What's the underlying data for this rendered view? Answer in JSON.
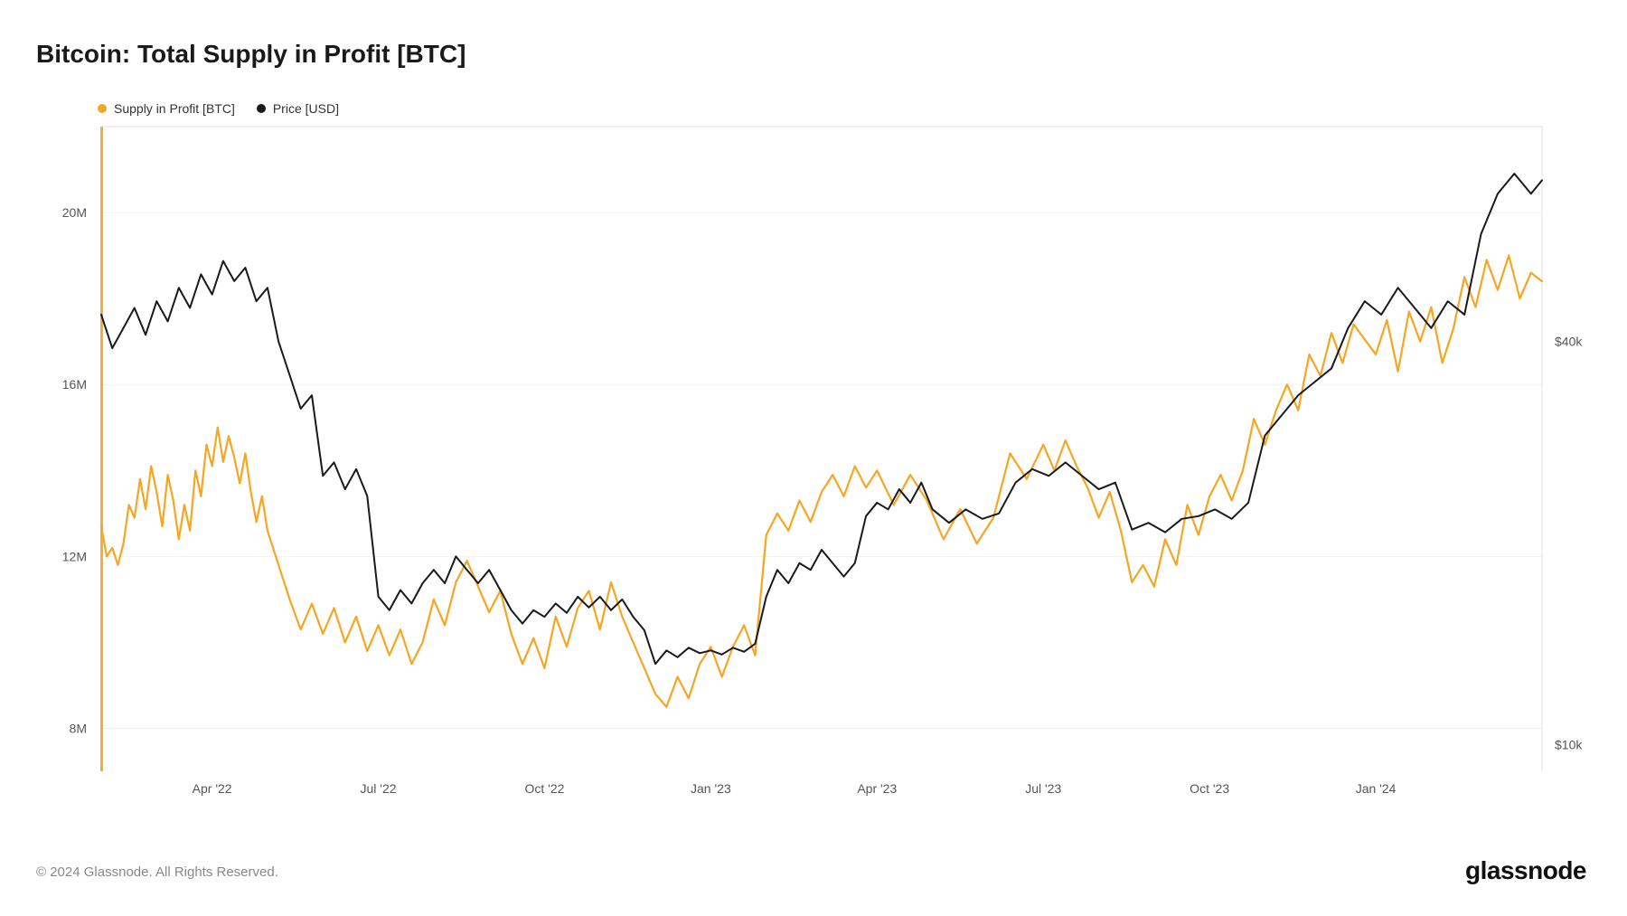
{
  "title": "Bitcoin: Total Supply in Profit [BTC]",
  "legend": {
    "series1": {
      "label": "Supply in Profit [BTC]",
      "color": "#f5a623"
    },
    "series2": {
      "label": "Price [USD]",
      "color": "#1a1a1a"
    }
  },
  "footer": "© 2024 Glassnode. All Rights Reserved.",
  "brand": "glassnode",
  "chart": {
    "type": "dual-axis-line",
    "background_color": "#ffffff",
    "grid_color": "#f2f2f2",
    "border_color": "#e0e0e0",
    "plot_border_right": "#e0e0e0",
    "left_axis": {
      "label_color": "#555",
      "ticks": [
        {
          "value": 8,
          "label": "8M"
        },
        {
          "value": 12,
          "label": "12M"
        },
        {
          "value": 16,
          "label": "16M"
        },
        {
          "value": 20,
          "label": "20M"
        }
      ],
      "min": 7,
      "max": 22
    },
    "right_axis": {
      "label_color": "#555",
      "ticks": [
        {
          "value": 10,
          "label": "$10k"
        },
        {
          "value": 40,
          "label": "$40k"
        }
      ],
      "min": 8,
      "max": 56
    },
    "x_axis": {
      "label_color": "#555",
      "min": 0,
      "max": 26,
      "ticks": [
        {
          "value": 2,
          "label": "Apr '22"
        },
        {
          "value": 5,
          "label": "Jul '22"
        },
        {
          "value": 8,
          "label": "Oct '22"
        },
        {
          "value": 11,
          "label": "Jan '23"
        },
        {
          "value": 14,
          "label": "Apr '23"
        },
        {
          "value": 17,
          "label": "Jul '23"
        },
        {
          "value": 20,
          "label": "Oct '23"
        },
        {
          "value": 23,
          "label": "Jan '24"
        }
      ]
    },
    "series_supply": {
      "color": "#f5a623",
      "line_width": 2.2,
      "data": [
        [
          0.0,
          12.7
        ],
        [
          0.1,
          12.0
        ],
        [
          0.2,
          12.2
        ],
        [
          0.3,
          11.8
        ],
        [
          0.4,
          12.3
        ],
        [
          0.5,
          13.2
        ],
        [
          0.6,
          12.9
        ],
        [
          0.7,
          13.8
        ],
        [
          0.8,
          13.1
        ],
        [
          0.9,
          14.1
        ],
        [
          1.0,
          13.5
        ],
        [
          1.1,
          12.7
        ],
        [
          1.2,
          13.9
        ],
        [
          1.3,
          13.3
        ],
        [
          1.4,
          12.4
        ],
        [
          1.5,
          13.2
        ],
        [
          1.6,
          12.6
        ],
        [
          1.7,
          14.0
        ],
        [
          1.8,
          13.4
        ],
        [
          1.9,
          14.6
        ],
        [
          2.0,
          14.1
        ],
        [
          2.1,
          15.0
        ],
        [
          2.2,
          14.2
        ],
        [
          2.3,
          14.8
        ],
        [
          2.4,
          14.3
        ],
        [
          2.5,
          13.7
        ],
        [
          2.6,
          14.4
        ],
        [
          2.7,
          13.5
        ],
        [
          2.8,
          12.8
        ],
        [
          2.9,
          13.4
        ],
        [
          3.0,
          12.6
        ],
        [
          3.2,
          11.8
        ],
        [
          3.4,
          11.0
        ],
        [
          3.6,
          10.3
        ],
        [
          3.8,
          10.9
        ],
        [
          4.0,
          10.2
        ],
        [
          4.2,
          10.8
        ],
        [
          4.4,
          10.0
        ],
        [
          4.6,
          10.6
        ],
        [
          4.8,
          9.8
        ],
        [
          5.0,
          10.4
        ],
        [
          5.2,
          9.7
        ],
        [
          5.4,
          10.3
        ],
        [
          5.6,
          9.5
        ],
        [
          5.8,
          10.0
        ],
        [
          6.0,
          11.0
        ],
        [
          6.2,
          10.4
        ],
        [
          6.4,
          11.4
        ],
        [
          6.6,
          11.9
        ],
        [
          6.8,
          11.3
        ],
        [
          7.0,
          10.7
        ],
        [
          7.2,
          11.2
        ],
        [
          7.4,
          10.2
        ],
        [
          7.6,
          9.5
        ],
        [
          7.8,
          10.1
        ],
        [
          8.0,
          9.4
        ],
        [
          8.2,
          10.6
        ],
        [
          8.4,
          9.9
        ],
        [
          8.6,
          10.8
        ],
        [
          8.8,
          11.2
        ],
        [
          9.0,
          10.3
        ],
        [
          9.2,
          11.4
        ],
        [
          9.4,
          10.6
        ],
        [
          9.6,
          10.0
        ],
        [
          9.8,
          9.4
        ],
        [
          10.0,
          8.8
        ],
        [
          10.2,
          8.5
        ],
        [
          10.4,
          9.2
        ],
        [
          10.6,
          8.7
        ],
        [
          10.8,
          9.5
        ],
        [
          11.0,
          9.9
        ],
        [
          11.2,
          9.2
        ],
        [
          11.4,
          9.9
        ],
        [
          11.6,
          10.4
        ],
        [
          11.8,
          9.7
        ],
        [
          12.0,
          12.5
        ],
        [
          12.2,
          13.0
        ],
        [
          12.4,
          12.6
        ],
        [
          12.6,
          13.3
        ],
        [
          12.8,
          12.8
        ],
        [
          13.0,
          13.5
        ],
        [
          13.2,
          13.9
        ],
        [
          13.4,
          13.4
        ],
        [
          13.6,
          14.1
        ],
        [
          13.8,
          13.6
        ],
        [
          14.0,
          14.0
        ],
        [
          14.3,
          13.2
        ],
        [
          14.6,
          13.9
        ],
        [
          14.9,
          13.3
        ],
        [
          15.2,
          12.4
        ],
        [
          15.5,
          13.1
        ],
        [
          15.8,
          12.3
        ],
        [
          16.1,
          12.9
        ],
        [
          16.4,
          14.4
        ],
        [
          16.7,
          13.8
        ],
        [
          17.0,
          14.6
        ],
        [
          17.2,
          14.0
        ],
        [
          17.4,
          14.7
        ],
        [
          17.6,
          14.1
        ],
        [
          17.8,
          13.6
        ],
        [
          18.0,
          12.9
        ],
        [
          18.2,
          13.5
        ],
        [
          18.4,
          12.6
        ],
        [
          18.6,
          11.4
        ],
        [
          18.8,
          11.8
        ],
        [
          19.0,
          11.3
        ],
        [
          19.2,
          12.4
        ],
        [
          19.4,
          11.8
        ],
        [
          19.6,
          13.2
        ],
        [
          19.8,
          12.5
        ],
        [
          20.0,
          13.4
        ],
        [
          20.2,
          13.9
        ],
        [
          20.4,
          13.3
        ],
        [
          20.6,
          14.0
        ],
        [
          20.8,
          15.2
        ],
        [
          21.0,
          14.6
        ],
        [
          21.2,
          15.4
        ],
        [
          21.4,
          16.0
        ],
        [
          21.6,
          15.4
        ],
        [
          21.8,
          16.7
        ],
        [
          22.0,
          16.2
        ],
        [
          22.2,
          17.2
        ],
        [
          22.4,
          16.5
        ],
        [
          22.6,
          17.4
        ],
        [
          23.0,
          16.7
        ],
        [
          23.2,
          17.5
        ],
        [
          23.4,
          16.3
        ],
        [
          23.6,
          17.7
        ],
        [
          23.8,
          17.0
        ],
        [
          24.0,
          17.8
        ],
        [
          24.2,
          16.5
        ],
        [
          24.4,
          17.3
        ],
        [
          24.6,
          18.5
        ],
        [
          24.8,
          17.8
        ],
        [
          25.0,
          18.9
        ],
        [
          25.2,
          18.2
        ],
        [
          25.4,
          19.0
        ],
        [
          25.6,
          18.0
        ],
        [
          25.8,
          18.6
        ],
        [
          26.0,
          18.4
        ]
      ]
    },
    "series_price": {
      "color": "#1a1a1a",
      "line_width": 2.0,
      "data": [
        [
          0.0,
          42.0
        ],
        [
          0.2,
          39.5
        ],
        [
          0.4,
          41.0
        ],
        [
          0.6,
          42.5
        ],
        [
          0.8,
          40.5
        ],
        [
          1.0,
          43.0
        ],
        [
          1.2,
          41.5
        ],
        [
          1.4,
          44.0
        ],
        [
          1.6,
          42.5
        ],
        [
          1.8,
          45.0
        ],
        [
          2.0,
          43.5
        ],
        [
          2.2,
          46.0
        ],
        [
          2.4,
          44.5
        ],
        [
          2.6,
          45.5
        ],
        [
          2.8,
          43.0
        ],
        [
          3.0,
          44.0
        ],
        [
          3.2,
          40.0
        ],
        [
          3.4,
          37.5
        ],
        [
          3.6,
          35.0
        ],
        [
          3.8,
          36.0
        ],
        [
          4.0,
          30.0
        ],
        [
          4.2,
          31.0
        ],
        [
          4.4,
          29.0
        ],
        [
          4.6,
          30.5
        ],
        [
          4.8,
          28.5
        ],
        [
          5.0,
          21.0
        ],
        [
          5.2,
          20.0
        ],
        [
          5.4,
          21.5
        ],
        [
          5.6,
          20.5
        ],
        [
          5.8,
          22.0
        ],
        [
          6.0,
          23.0
        ],
        [
          6.2,
          22.0
        ],
        [
          6.4,
          24.0
        ],
        [
          6.6,
          23.0
        ],
        [
          6.8,
          22.0
        ],
        [
          7.0,
          23.0
        ],
        [
          7.2,
          21.5
        ],
        [
          7.4,
          20.0
        ],
        [
          7.6,
          19.0
        ],
        [
          7.8,
          20.0
        ],
        [
          8.0,
          19.5
        ],
        [
          8.2,
          20.5
        ],
        [
          8.4,
          19.8
        ],
        [
          8.6,
          21.0
        ],
        [
          8.8,
          20.2
        ],
        [
          9.0,
          21.0
        ],
        [
          9.2,
          20.0
        ],
        [
          9.4,
          20.8
        ],
        [
          9.6,
          19.5
        ],
        [
          9.8,
          18.5
        ],
        [
          10.0,
          16.0
        ],
        [
          10.2,
          17.0
        ],
        [
          10.4,
          16.5
        ],
        [
          10.6,
          17.2
        ],
        [
          10.8,
          16.8
        ],
        [
          11.0,
          17.0
        ],
        [
          11.2,
          16.7
        ],
        [
          11.4,
          17.2
        ],
        [
          11.6,
          16.9
        ],
        [
          11.8,
          17.5
        ],
        [
          12.0,
          21.0
        ],
        [
          12.2,
          23.0
        ],
        [
          12.4,
          22.0
        ],
        [
          12.6,
          23.5
        ],
        [
          12.8,
          23.0
        ],
        [
          13.0,
          24.5
        ],
        [
          13.2,
          23.5
        ],
        [
          13.4,
          22.5
        ],
        [
          13.6,
          23.5
        ],
        [
          13.8,
          27.0
        ],
        [
          14.0,
          28.0
        ],
        [
          14.2,
          27.5
        ],
        [
          14.4,
          29.0
        ],
        [
          14.6,
          28.0
        ],
        [
          14.8,
          29.5
        ],
        [
          15.0,
          27.5
        ],
        [
          15.3,
          26.5
        ],
        [
          15.6,
          27.5
        ],
        [
          15.9,
          26.8
        ],
        [
          16.2,
          27.2
        ],
        [
          16.5,
          29.5
        ],
        [
          16.8,
          30.5
        ],
        [
          17.1,
          30.0
        ],
        [
          17.4,
          31.0
        ],
        [
          17.7,
          30.0
        ],
        [
          18.0,
          29.0
        ],
        [
          18.3,
          29.5
        ],
        [
          18.6,
          26.0
        ],
        [
          18.9,
          26.5
        ],
        [
          19.2,
          25.8
        ],
        [
          19.5,
          26.8
        ],
        [
          19.8,
          27.0
        ],
        [
          20.1,
          27.5
        ],
        [
          20.4,
          26.8
        ],
        [
          20.7,
          28.0
        ],
        [
          21.0,
          33.0
        ],
        [
          21.3,
          34.5
        ],
        [
          21.6,
          36.0
        ],
        [
          21.9,
          37.0
        ],
        [
          22.2,
          38.0
        ],
        [
          22.5,
          41.0
        ],
        [
          22.8,
          43.0
        ],
        [
          23.1,
          42.0
        ],
        [
          23.4,
          44.0
        ],
        [
          23.7,
          42.5
        ],
        [
          24.0,
          41.0
        ],
        [
          24.3,
          43.0
        ],
        [
          24.6,
          42.0
        ],
        [
          24.9,
          48.0
        ],
        [
          25.2,
          51.0
        ],
        [
          25.5,
          52.5
        ],
        [
          25.8,
          51.0
        ],
        [
          26.0,
          52.0
        ]
      ]
    }
  }
}
